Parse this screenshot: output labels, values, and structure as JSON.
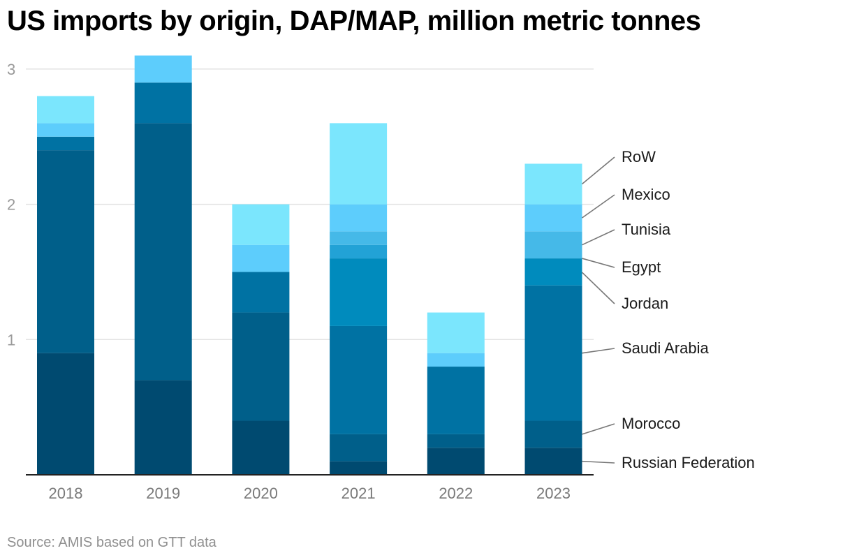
{
  "chart_data": {
    "type": "bar",
    "stacked": true,
    "title": "US imports by origin, DAP/MAP, million metric tonnes",
    "source": "Source: AMIS based on GTT data",
    "categories": [
      "2018",
      "2019",
      "2020",
      "2021",
      "2022",
      "2023"
    ],
    "ylim": [
      0,
      3.1
    ],
    "yticks": [
      1,
      2,
      3
    ],
    "grid": true,
    "series": [
      {
        "name": "Russian Federation",
        "color": "#004a70",
        "values": [
          0.9,
          0.7,
          0.4,
          0.1,
          0.2,
          0.2
        ]
      },
      {
        "name": "Morocco",
        "color": "#005f8a",
        "values": [
          1.5,
          1.9,
          0.8,
          0.2,
          0.1,
          0.2
        ]
      },
      {
        "name": "Saudi Arabia",
        "color": "#0072a3",
        "values": [
          0.1,
          0.3,
          0.3,
          0.8,
          0.5,
          1.0
        ]
      },
      {
        "name": "Jordan",
        "color": "#008bbd",
        "values": [
          0.0,
          0.0,
          0.0,
          0.5,
          0.0,
          0.2
        ]
      },
      {
        "name": "Egypt",
        "color": "#22a2d6",
        "values": [
          0.0,
          0.0,
          0.0,
          0.1,
          0.0,
          0.0
        ]
      },
      {
        "name": "Tunisia",
        "color": "#45b9e8",
        "values": [
          0.0,
          0.0,
          0.0,
          0.1,
          0.0,
          0.2
        ]
      },
      {
        "name": "Mexico",
        "color": "#5dcdfc",
        "values": [
          0.1,
          0.2,
          0.2,
          0.2,
          0.1,
          0.2
        ]
      },
      {
        "name": "RoW",
        "color": "#7be6fd",
        "values": [
          0.2,
          0.0,
          0.3,
          0.6,
          0.3,
          0.3
        ]
      }
    ]
  }
}
